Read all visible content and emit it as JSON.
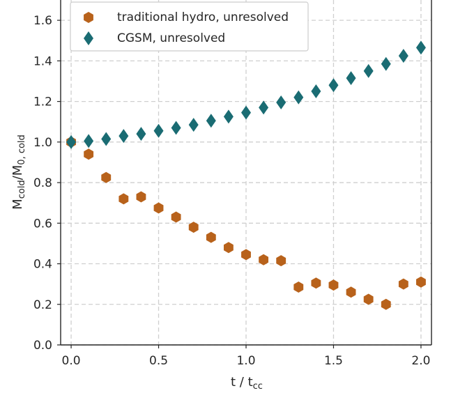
{
  "chart_data": {
    "type": "scatter",
    "title": "",
    "xlabel": {
      "main": "t / t",
      "sub": "cc"
    },
    "ylabel": {
      "m1": "M",
      "s1": "cold",
      "m2": "/M",
      "s2": "0, cold"
    },
    "xlim": [
      -0.06,
      2.06
    ],
    "ylim": [
      0.0,
      1.7
    ],
    "xticks": [
      0.0,
      0.5,
      1.0,
      1.5,
      2.0
    ],
    "xtick_labels": [
      "0.0",
      "0.5",
      "1.0",
      "1.5",
      "2.0"
    ],
    "yticks": [
      0.0,
      0.2,
      0.4,
      0.6,
      0.8,
      1.0,
      1.2,
      1.4,
      1.6
    ],
    "ytick_labels": [
      "0.0",
      "0.2",
      "0.4",
      "0.6",
      "0.8",
      "1.0",
      "1.2",
      "1.4",
      "1.6"
    ],
    "grid": true,
    "legend_position": "top-left",
    "series": [
      {
        "name": "traditional hydro, unresolved",
        "marker": "hexagon",
        "color": "#b8621b",
        "x": [
          0.0,
          0.1,
          0.2,
          0.3,
          0.4,
          0.5,
          0.6,
          0.7,
          0.8,
          0.9,
          1.0,
          1.1,
          1.2,
          1.3,
          1.4,
          1.5,
          1.6,
          1.7,
          1.8,
          1.9,
          2.0
        ],
        "y": [
          1.0,
          0.94,
          0.825,
          0.72,
          0.73,
          0.675,
          0.63,
          0.58,
          0.53,
          0.48,
          0.445,
          0.42,
          0.415,
          0.285,
          0.305,
          0.295,
          0.26,
          0.225,
          0.2,
          0.3,
          0.31
        ]
      },
      {
        "name": "CGSM, unresolved",
        "marker": "diamond",
        "color": "#1a6c73",
        "x": [
          0.0,
          0.1,
          0.2,
          0.3,
          0.4,
          0.5,
          0.6,
          0.7,
          0.8,
          0.9,
          1.0,
          1.1,
          1.2,
          1.3,
          1.4,
          1.5,
          1.6,
          1.7,
          1.8,
          1.9,
          2.0
        ],
        "y": [
          1.0,
          1.005,
          1.015,
          1.03,
          1.04,
          1.055,
          1.07,
          1.085,
          1.105,
          1.125,
          1.145,
          1.17,
          1.195,
          1.22,
          1.25,
          1.28,
          1.315,
          1.35,
          1.385,
          1.425,
          1.465
        ]
      }
    ]
  }
}
